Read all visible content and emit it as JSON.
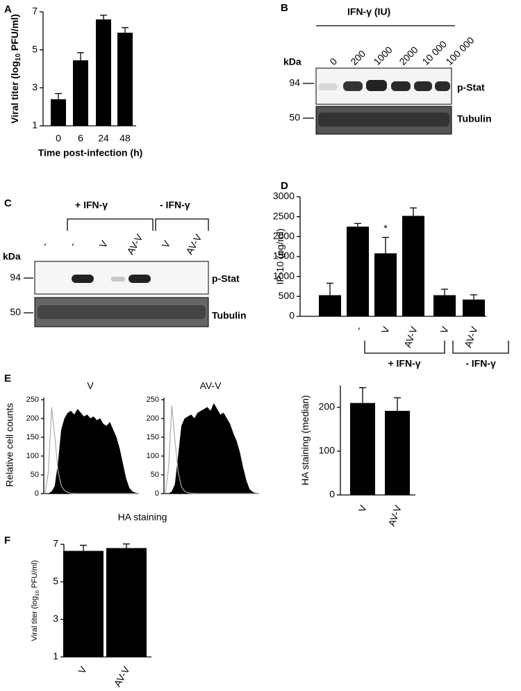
{
  "chart_data": [
    {
      "type": "bar",
      "panel": "A",
      "ylabel": [
        "Viral titer (log",
        "10",
        " PFU/ml)"
      ],
      "xlabel": "Time post-infection (h)",
      "categories": [
        "0",
        "6",
        "24",
        "48"
      ],
      "values": [
        2.4,
        4.45,
        6.6,
        5.9
      ],
      "errors": [
        0.3,
        0.4,
        0.22,
        0.27
      ],
      "ylim": [
        1,
        7
      ],
      "yticks": [
        1,
        3,
        5,
        7
      ],
      "color": "#000000"
    },
    {
      "type": "bar",
      "panel": "D",
      "ylabel": [
        "IP-10 (pg/ml)"
      ],
      "categories": [
        null,
        "-",
        "V",
        "AV-V",
        "V",
        "AV-V"
      ],
      "values": [
        530,
        2250,
        1580,
        2520,
        530,
        420
      ],
      "errors": [
        300,
        80,
        400,
        200,
        150,
        120
      ],
      "annotation": "*",
      "groups": [
        "+ IFN-γ",
        "- IFN-γ"
      ],
      "ylim": [
        0,
        3000
      ],
      "yticks": [
        0,
        500,
        1000,
        1500,
        2000,
        2500,
        3000
      ],
      "color": "#000000"
    },
    {
      "type": "area",
      "panel": "E",
      "ylabel": "Relative cell counts",
      "xlabel": "HA staining",
      "ylim": [
        0,
        250
      ],
      "yticks": [
        0,
        50,
        100,
        150,
        200,
        250
      ],
      "panels": [
        {
          "title": "V",
          "series": [
            {
              "color": "#000000",
              "values": [
                0,
                0,
                5,
                20,
                80,
                170,
                200,
                215,
                220,
                210,
                225,
                215,
                205,
                210,
                200,
                205,
                195,
                200,
                185,
                180,
                190,
                170,
                150,
                120,
                80,
                40,
                15,
                5,
                2,
                0
              ]
            },
            {
              "color": "#aaaaaa",
              "values": [
                0,
                60,
                230,
                150,
                60,
                20,
                8,
                3,
                1,
                0,
                0,
                0,
                0,
                0,
                0,
                0,
                0,
                0,
                0,
                0,
                0,
                0,
                0,
                0,
                0,
                0,
                0,
                0,
                0,
                0
              ]
            }
          ]
        },
        {
          "title": "AV-V",
          "series": [
            {
              "color": "#000000",
              "values": [
                0,
                0,
                5,
                25,
                100,
                180,
                200,
                205,
                210,
                200,
                215,
                220,
                225,
                230,
                220,
                240,
                225,
                210,
                215,
                200,
                185,
                160,
                140,
                110,
                70,
                35,
                12,
                4,
                1,
                0
              ]
            },
            {
              "color": "#aaaaaa",
              "values": [
                0,
                70,
                235,
                140,
                55,
                18,
                6,
                2,
                1,
                0,
                0,
                0,
                0,
                0,
                0,
                0,
                0,
                0,
                0,
                0,
                0,
                0,
                0,
                0,
                0,
                0,
                0,
                0,
                0,
                0
              ]
            }
          ]
        }
      ]
    },
    {
      "type": "bar",
      "ylabel": [
        "HA staining (median)"
      ],
      "categories": [
        "V",
        "AV-V"
      ],
      "values": [
        210,
        192
      ],
      "errors": [
        35,
        30
      ],
      "ylim": [
        0,
        250
      ],
      "yticks": [
        0,
        100,
        200
      ],
      "color": "#000000"
    },
    {
      "type": "bar",
      "panel": "F",
      "ylabel": [
        "Viral titer (log",
        "10",
        " PFU/ml)"
      ],
      "categories": [
        "V",
        "AV-V"
      ],
      "values": [
        6.65,
        6.8
      ],
      "errors": [
        0.3,
        0.22
      ],
      "ylim": [
        1,
        7
      ],
      "yticks": [
        1,
        3,
        5,
        7
      ],
      "color": "#000000"
    }
  ],
  "blots": [
    {
      "panel": "B",
      "header": "IFN-γ (IU)",
      "lanes": [
        "0",
        "200",
        "1000",
        "2000",
        "10 000",
        "100 000"
      ],
      "unit": "kDa",
      "markers": [
        "94",
        "50"
      ],
      "bands": [
        "p-Stat",
        "Tubulin"
      ]
    },
    {
      "panel": "C",
      "groups": [
        "+ IFN-γ",
        "- IFN-γ"
      ],
      "lanes": [
        "-",
        "-",
        "V",
        "AV-V",
        "V",
        "AV-V"
      ],
      "unit": "kDa",
      "markers": [
        "94",
        "50"
      ],
      "bands": [
        "p-Stat",
        "Tubulin"
      ]
    }
  ]
}
